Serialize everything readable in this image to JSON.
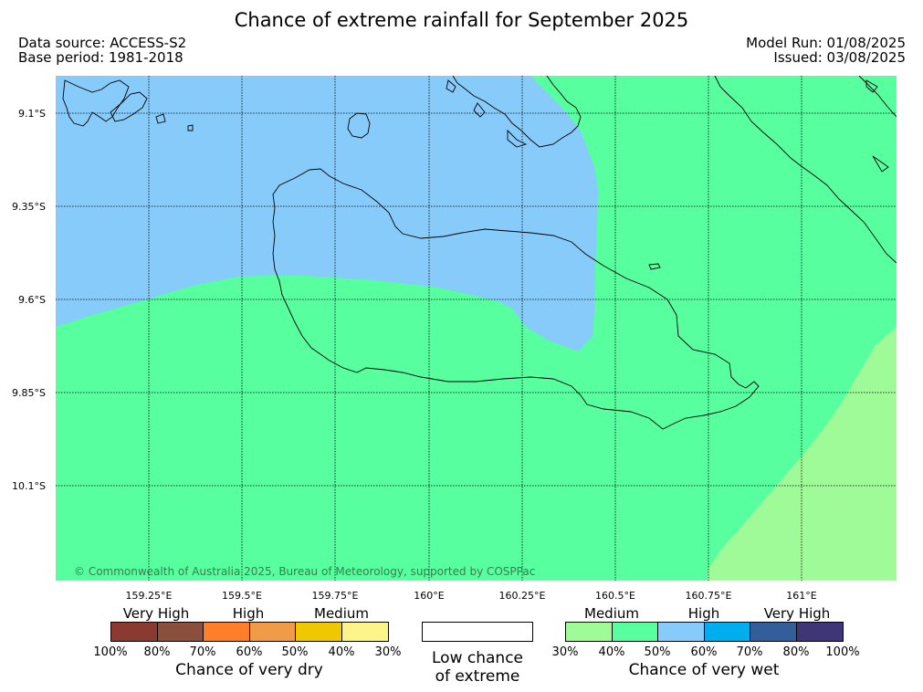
{
  "title": "Chance of extreme rainfall for September 2025",
  "header": {
    "data_source": "Data source: ACCESS-S2",
    "base_period": "Base period: 1981-2018",
    "model_run": "Model Run: 01/08/2025",
    "issued": "Issued: 03/08/2025"
  },
  "map": {
    "lat_labels": [
      "9.1°S",
      "9.35°S",
      "9.6°S",
      "9.85°S",
      "10.1°S"
    ],
    "lon_labels": [
      "159.25°E",
      "159.5°E",
      "159.75°E",
      "160°E",
      "160.25°E",
      "160.5°E",
      "160.75°E",
      "161°E"
    ],
    "copyright": "© Commonwealth of Australia 2025, Bureau of Meteorology, supported by COSPPac",
    "regions": [
      {
        "category": "wet 40%-50%",
        "color": "#57ff9e"
      },
      {
        "category": "wet 50%-60%",
        "color": "#87cbfb"
      },
      {
        "category": "wet 30%-40%",
        "color": "#9ffb98"
      }
    ]
  },
  "legend": {
    "dry": {
      "categories": [
        "Very High",
        "High",
        "Medium"
      ],
      "colors": [
        "#8b3a32",
        "#8b4f3e",
        "#ff7e29",
        "#f09b47",
        "#f0c800",
        "#fef58a"
      ],
      "ticks": [
        "100%",
        "80%",
        "70%",
        "60%",
        "50%",
        "40%",
        "30%"
      ],
      "caption": "Chance of very dry"
    },
    "low": {
      "line1": "Low chance",
      "line2": "of extreme",
      "color": "#ffffff"
    },
    "wet": {
      "categories": [
        "Medium",
        "High",
        "Very High"
      ],
      "colors": [
        "#9ffb98",
        "#57ff9e",
        "#87cbfb",
        "#00adee",
        "#345e9a",
        "#3e3676"
      ],
      "ticks": [
        "30%",
        "40%",
        "50%",
        "60%",
        "70%",
        "80%",
        "100%"
      ],
      "caption": "Chance of very wet"
    }
  }
}
